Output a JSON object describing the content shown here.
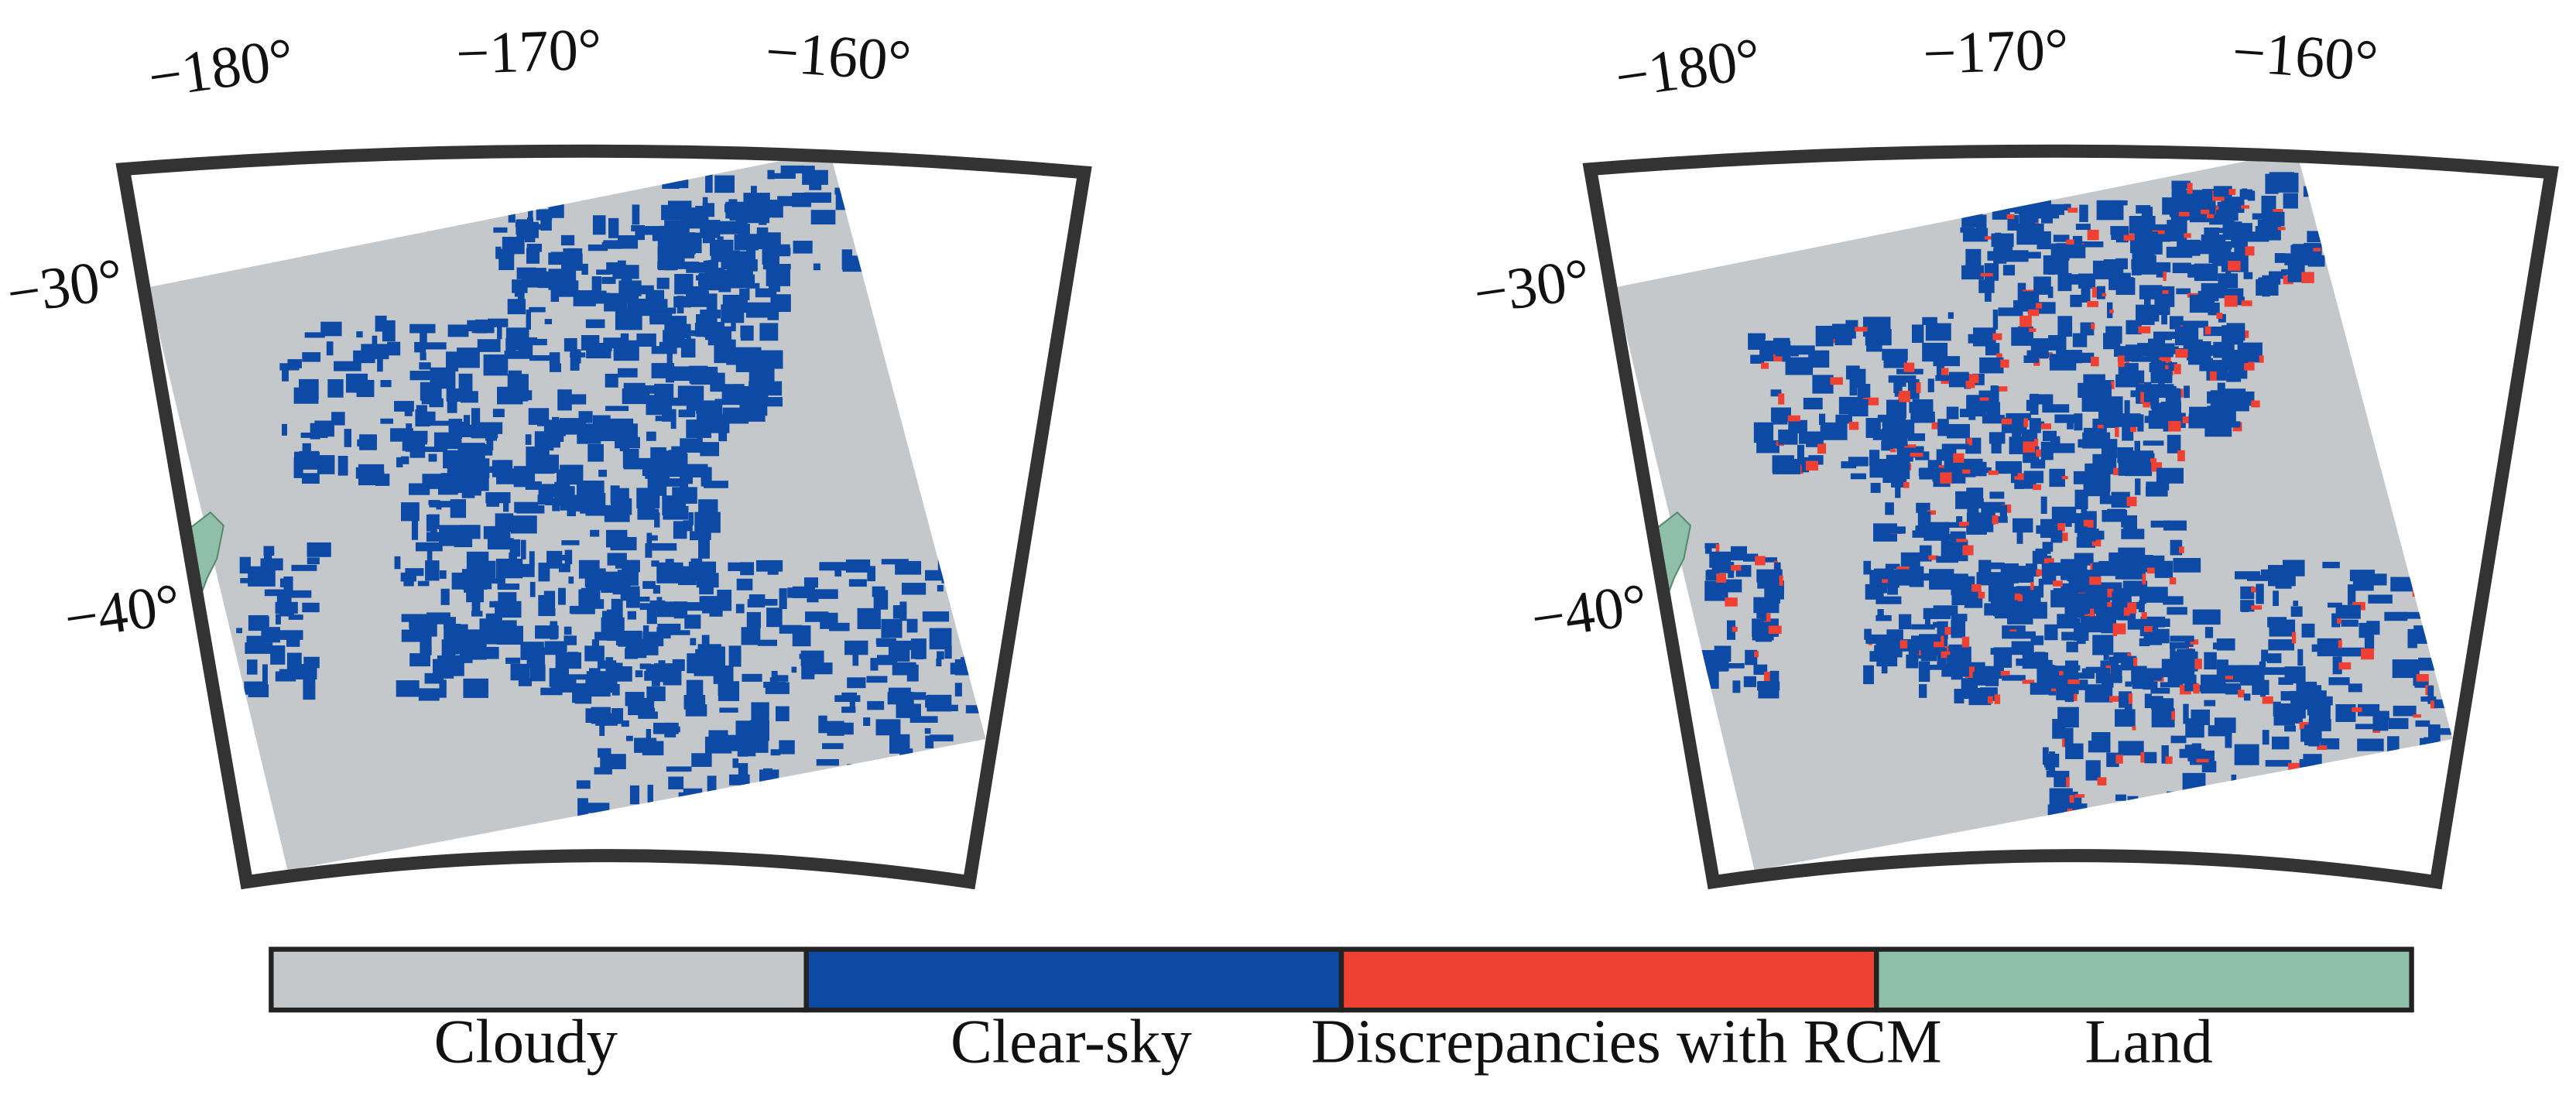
{
  "maps": [
    {
      "lon_labels": [
        "−180°",
        "−170°",
        "−160°"
      ],
      "lat_labels": [
        "−30°",
        "−40°"
      ]
    },
    {
      "lon_labels": [
        "−180°",
        "−170°",
        "−160°"
      ],
      "lat_labels": [
        "−30°",
        "−40°"
      ]
    }
  ],
  "legend": [
    {
      "label": "Cloudy",
      "color": "#c5c8cb"
    },
    {
      "label": "Clear-sky",
      "color": "#0c4aa6"
    },
    {
      "label": "Discrepancies with RCM",
      "color": "#ee4134"
    },
    {
      "label": "Land",
      "color": "#8fbfa8"
    }
  ]
}
